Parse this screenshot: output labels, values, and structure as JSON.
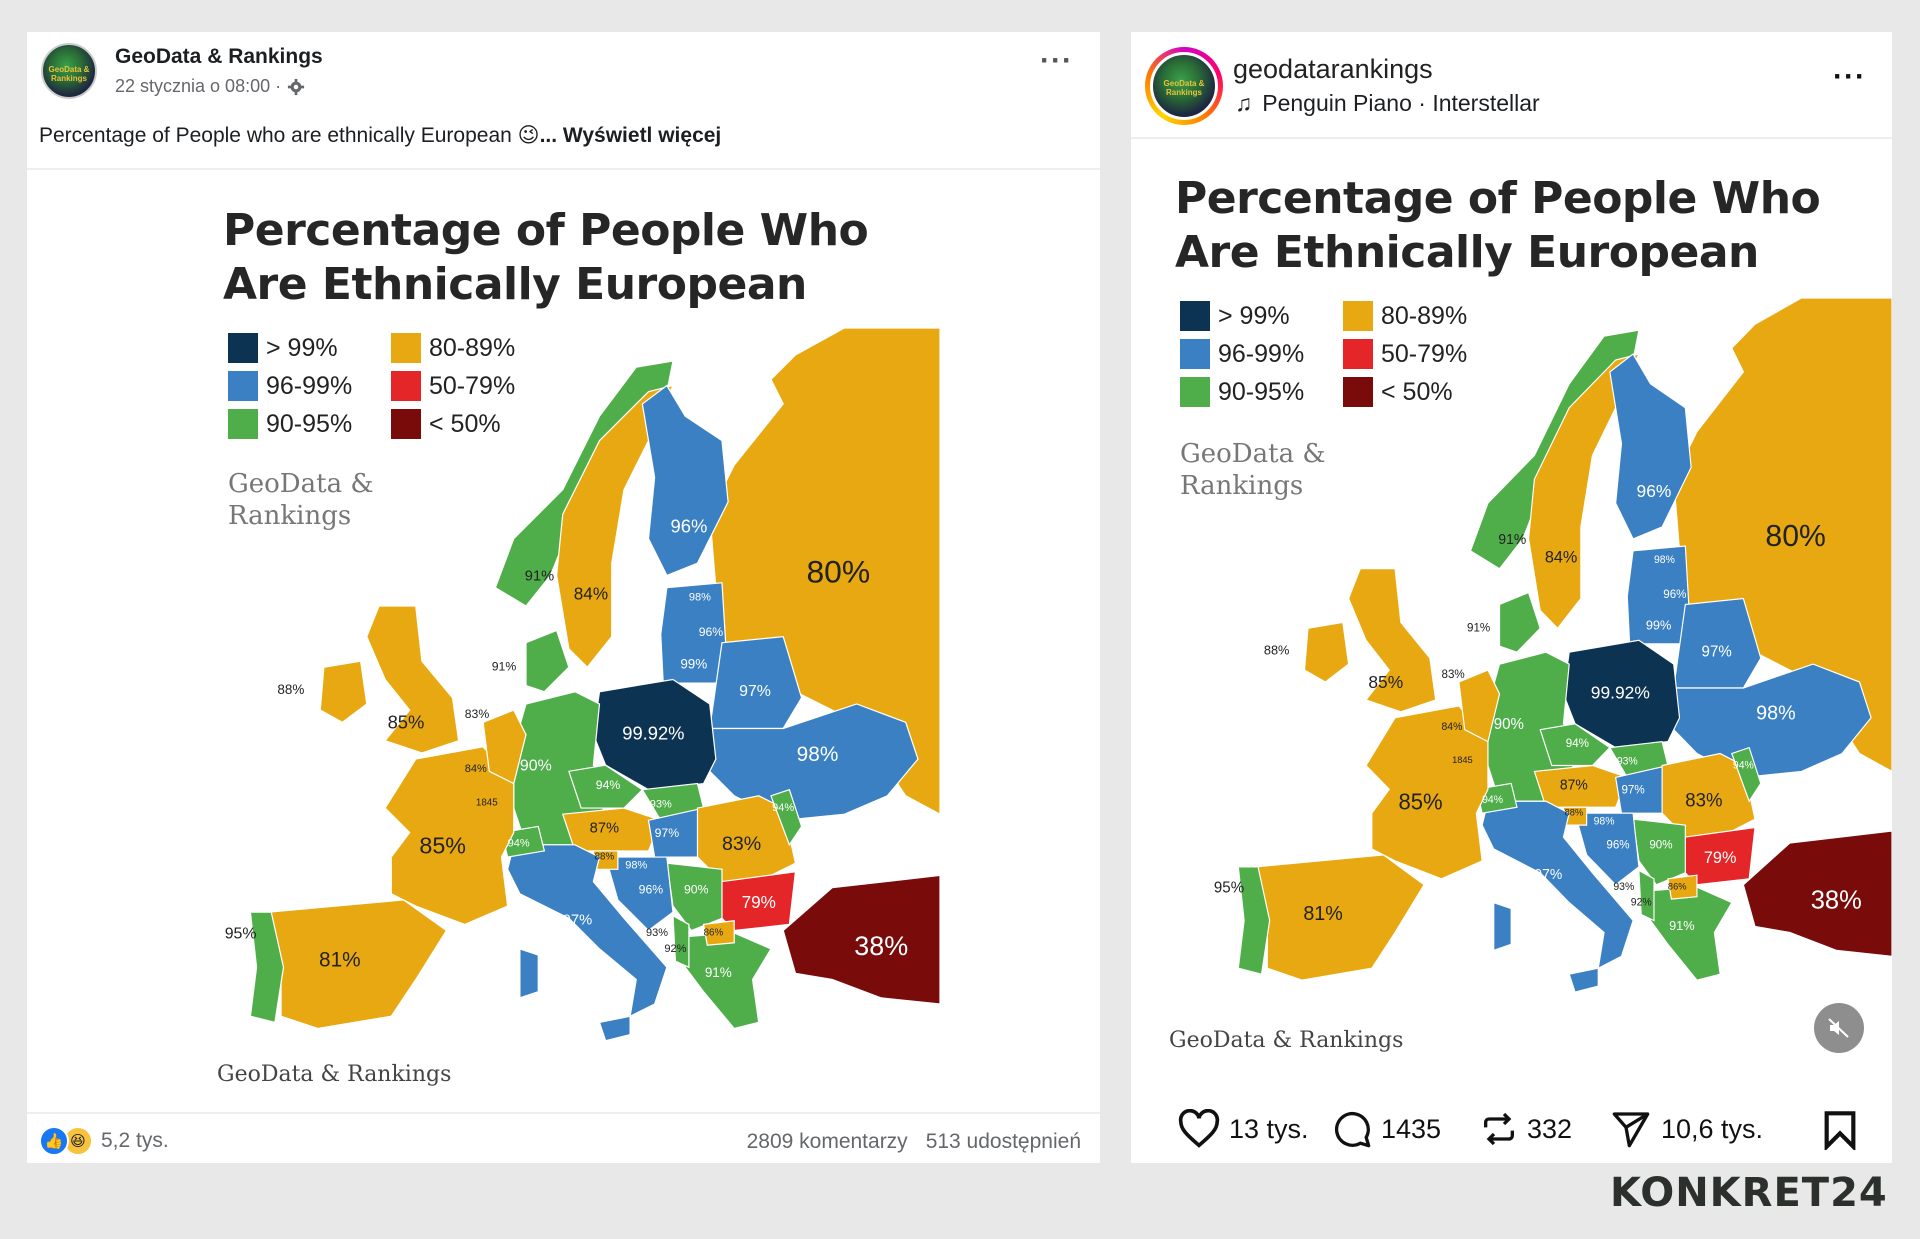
{
  "colors": {
    "over99": "#0d3352",
    "96_99": "#3a80c3",
    "90_95": "#4fae4a",
    "80_89": "#e8a811",
    "50_79": "#e52629",
    "under50": "#7a0b0b",
    "background": "#e8e8e8"
  },
  "facebook": {
    "page_name": "GeoData & Rankings",
    "avatar_text": "GeoData & Rankings",
    "date": "22 stycznia o 08:00 ·",
    "caption": "Percentage of People who are ethnically European",
    "caption_emoji": "😉",
    "see_more": "... Wyświetl więcej",
    "reactions_count": "5,2 tys.",
    "comments": "2809 komentarzy",
    "shares": "513 udostępnień"
  },
  "instagram": {
    "username": "geodatarankings",
    "avatar_text": "GeoData & Rankings",
    "music": "Penguin Piano · Interstellar",
    "likes": "13 tys.",
    "comments": "1435",
    "reposts": "332",
    "shares": "10,6 tys."
  },
  "chart": {
    "title_line1": "Percentage of People Who",
    "title_line2": "Are Ethnically  European",
    "legend": [
      {
        "label": "> 99%",
        "color": "#0d3352"
      },
      {
        "label": "96-99%",
        "color": "#3a80c3"
      },
      {
        "label": "90-95%",
        "color": "#4fae4a"
      },
      {
        "label": "80-89%",
        "color": "#e8a811"
      },
      {
        "label": "50-79%",
        "color": "#e52629"
      },
      {
        "label": "< 50%",
        "color": "#7a0b0b"
      }
    ],
    "watermark_line1": "GeoData &",
    "watermark_line2": "Rankings",
    "footer_watermark": "GeoData & Rankings",
    "map_labels": [
      "80%",
      "96%",
      "91%",
      "84%",
      "98%",
      "96%",
      "99%",
      "91%",
      "97%",
      "88%",
      "85%",
      "83%",
      "99.92%",
      "98%",
      "84%",
      "90%",
      "1845",
      "94%",
      "93%",
      "94%",
      "87%",
      "97%",
      "83%",
      "85%",
      "94%",
      "88%",
      "98%",
      "96%",
      "90%",
      "79%",
      "97%",
      "93%",
      "86%",
      "92%",
      "95%",
      "81%",
      "91%",
      "38%"
    ]
  },
  "brand": {
    "logo": "KONKRET24"
  }
}
